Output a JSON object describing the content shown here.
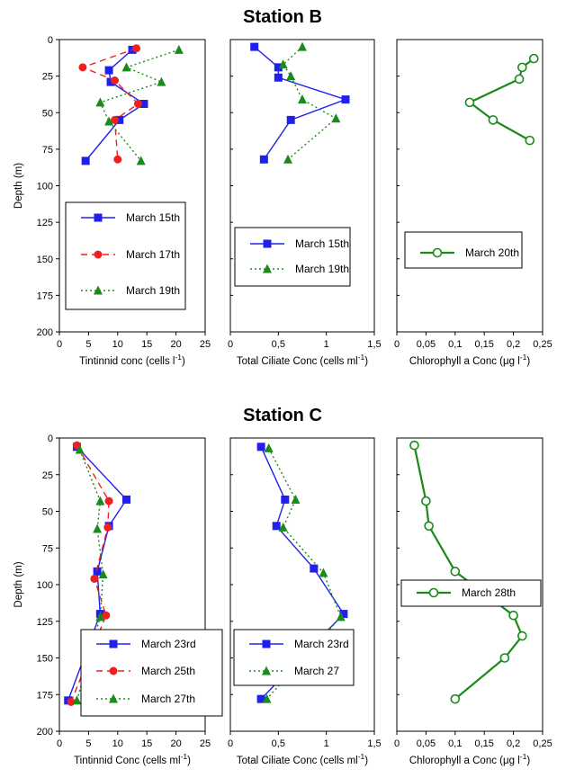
{
  "chart_data": [
    {
      "type": "line",
      "station": "Station B",
      "xlabel": "Tintinnid conc (cells l",
      "xlabel_sup": "-1",
      "xlabel_end": ")",
      "ylabel": "Depth (m)",
      "xlim": [
        0,
        25
      ],
      "ylim": [
        0,
        200
      ],
      "xticks": [
        "0",
        "5",
        "10",
        "15",
        "20",
        "25"
      ],
      "yticks": [
        "0",
        "25",
        "50",
        "75",
        "100",
        "125",
        "150",
        "175",
        "200"
      ],
      "series": [
        {
          "name": "March 15th",
          "color": "#2020ee",
          "dash": "solid",
          "marker": "square",
          "x": [
            12.5,
            8.5,
            8.8,
            14.5,
            10.3,
            4.5
          ],
          "y": [
            7,
            21,
            29,
            44,
            55,
            83
          ]
        },
        {
          "name": "March 17th",
          "color": "#ee2020",
          "dash": "dashed",
          "marker": "circle",
          "x": [
            13.2,
            4.0,
            9.5,
            13.5,
            9.5,
            10.0
          ],
          "y": [
            6,
            19,
            28,
            44,
            55,
            82
          ]
        },
        {
          "name": "March 19th",
          "color": "#1a8a1a",
          "dash": "dotted",
          "marker": "triangle",
          "x": [
            20.5,
            11.5,
            17.5,
            7.0,
            8.5,
            14.0
          ],
          "y": [
            7,
            19,
            29,
            43,
            56,
            83
          ]
        }
      ],
      "legend": "bottom"
    },
    {
      "type": "line",
      "xlabel": "Total Ciliate Conc (cells ml",
      "xlabel_sup": "-1",
      "xlabel_end": ")",
      "xlim": [
        0,
        1.5
      ],
      "ylim": [
        0,
        200
      ],
      "xticks": [
        "0",
        "0,5",
        "1",
        "1,5"
      ],
      "series": [
        {
          "name": "March 15th",
          "color": "#2020ee",
          "dash": "solid",
          "marker": "square",
          "x": [
            0.25,
            0.5,
            0.5,
            1.2,
            0.63,
            0.35
          ],
          "y": [
            5,
            19,
            26,
            41,
            55,
            82
          ]
        },
        {
          "name": "March 19th",
          "color": "#1a8a1a",
          "dash": "dotted",
          "marker": "triangle",
          "x": [
            0.75,
            0.55,
            0.63,
            0.75,
            1.1,
            0.6
          ],
          "y": [
            5,
            17,
            25,
            41,
            54,
            82
          ]
        }
      ],
      "legend": "middle"
    },
    {
      "type": "line",
      "xlabel": "Chlorophyll a Conc (μg l",
      "xlabel_sup": "-1",
      "xlabel_end": ")",
      "xlim": [
        0,
        0.25
      ],
      "ylim": [
        0,
        200
      ],
      "xticks": [
        "0",
        "0,05",
        "0,1",
        "0,15",
        "0,2",
        "0,25"
      ],
      "series": [
        {
          "name": "March 20th",
          "color": "#1a8a1a",
          "dash": "solid",
          "marker": "open-circle",
          "x": [
            0.235,
            0.215,
            0.21,
            0.125,
            0.165,
            0.228
          ],
          "y": [
            13,
            19,
            27,
            43,
            55,
            69
          ]
        }
      ],
      "legend": "middle"
    },
    {
      "type": "line",
      "station": "Station C",
      "xlabel": "Tintinnid Conc (cells ml",
      "xlabel_sup": "-1",
      "xlabel_end": ")",
      "ylabel": "Depth (m)",
      "xlim": [
        0,
        25
      ],
      "ylim": [
        0,
        200
      ],
      "xticks": [
        "0",
        "5",
        "10",
        "15",
        "20",
        "25"
      ],
      "yticks": [
        "0",
        "25",
        "50",
        "75",
        "100",
        "125",
        "150",
        "175",
        "200"
      ],
      "series": [
        {
          "name": "March 23rd",
          "color": "#2020ee",
          "dash": "solid",
          "marker": "square",
          "x": [
            3.0,
            11.5,
            8.5,
            6.5,
            7.0,
            1.5
          ],
          "y": [
            6,
            42,
            60,
            91,
            120,
            179
          ]
        },
        {
          "name": "March 25th",
          "color": "#ee2020",
          "dash": "dashed",
          "marker": "circle",
          "x": [
            3.0,
            8.5,
            8.3,
            6.0,
            8.0,
            2.0
          ],
          "y": [
            5,
            43,
            61,
            96,
            121,
            180
          ]
        },
        {
          "name": "March 27th",
          "color": "#1a8a1a",
          "dash": "dotted",
          "marker": "triangle",
          "x": [
            3.5,
            7.0,
            6.5,
            7.5,
            7.0,
            3.0
          ],
          "y": [
            8,
            43,
            62,
            93,
            122,
            179
          ]
        }
      ],
      "legend": "bottom"
    },
    {
      "type": "line",
      "xlabel": "Total Ciliate Conc (cells ml",
      "xlabel_sup": "-1",
      "xlabel_end": ")",
      "xlim": [
        0,
        1.5
      ],
      "ylim": [
        0,
        200
      ],
      "xticks": [
        "0",
        "0,5",
        "1",
        "1,5"
      ],
      "series": [
        {
          "name": "March 23rd",
          "color": "#2020ee",
          "dash": "solid",
          "marker": "square",
          "x": [
            0.32,
            0.57,
            0.48,
            0.87,
            1.18,
            0.32
          ],
          "y": [
            6,
            42,
            60,
            89,
            120,
            178
          ]
        },
        {
          "name": "March 27",
          "color": "#1a8a1a",
          "dash": "dotted",
          "marker": "triangle",
          "x": [
            0.4,
            0.68,
            0.55,
            0.97,
            1.15,
            0.38
          ],
          "y": [
            7,
            42,
            61,
            92,
            122,
            178
          ]
        }
      ],
      "legend": "bottom"
    },
    {
      "type": "line",
      "xlabel": "Chlorophyll a Conc (μg l",
      "xlabel_sup": "-1",
      "xlabel_end": ")",
      "xlim": [
        0,
        0.25
      ],
      "ylim": [
        0,
        200
      ],
      "xticks": [
        "0",
        "0,05",
        "0,1",
        "0,15",
        "0,2",
        "0,25"
      ],
      "series": [
        {
          "name": "March 28th",
          "color": "#1a8a1a",
          "dash": "solid",
          "marker": "open-circle",
          "x": [
            0.03,
            0.05,
            0.055,
            0.1,
            0.2,
            0.215,
            0.185,
            0.1
          ],
          "y": [
            5,
            43,
            60,
            91,
            121,
            135,
            150,
            178
          ]
        }
      ],
      "legend": "middle"
    }
  ]
}
